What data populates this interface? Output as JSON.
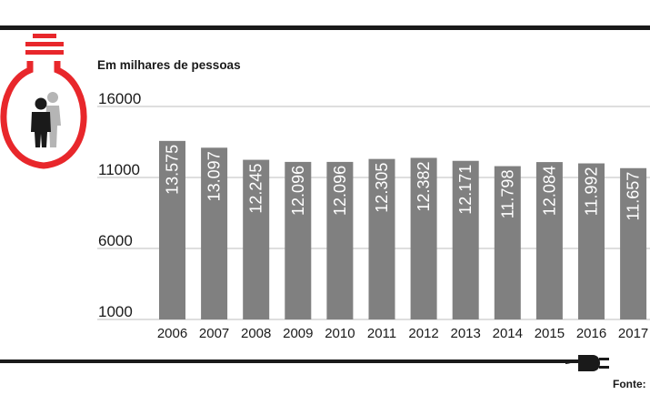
{
  "header": {
    "subtitle": "Em milhares de pessoas"
  },
  "footer": {
    "source": "Fonte:"
  },
  "icons": {
    "bulb": "lightbulb-icon",
    "people": "people-icon",
    "plug": "plug-icon"
  },
  "colors": {
    "bar": "#808080",
    "accent": "#e8272b",
    "text": "#1a1a1a",
    "grid": "#bdbdbd",
    "person_front": "#1a1a1a",
    "person_back": "#b5b5b5"
  },
  "chart_data": {
    "type": "bar",
    "title": "",
    "xlabel": "",
    "ylabel": "Em milhares de pessoas",
    "categories": [
      "2006",
      "2007",
      "2008",
      "2009",
      "2010",
      "2011",
      "2012",
      "2013",
      "2014",
      "2015",
      "2016",
      "2017"
    ],
    "values": [
      13575,
      13097,
      12245,
      12096,
      12096,
      12305,
      12382,
      12171,
      11798,
      12084,
      11992,
      11657
    ],
    "value_labels": [
      "13.575",
      "13.097",
      "12.245",
      "12.096",
      "12.096",
      "12.305",
      "12.382",
      "12.171",
      "11.798",
      "12.084",
      "11.992",
      "11.657"
    ],
    "yticks": [
      1000,
      6000,
      11000,
      16000
    ],
    "ytick_labels": [
      "1000",
      "6000",
      "11000",
      "16000"
    ],
    "ylim": [
      1000,
      16000
    ],
    "grid": true,
    "legend": "none"
  }
}
